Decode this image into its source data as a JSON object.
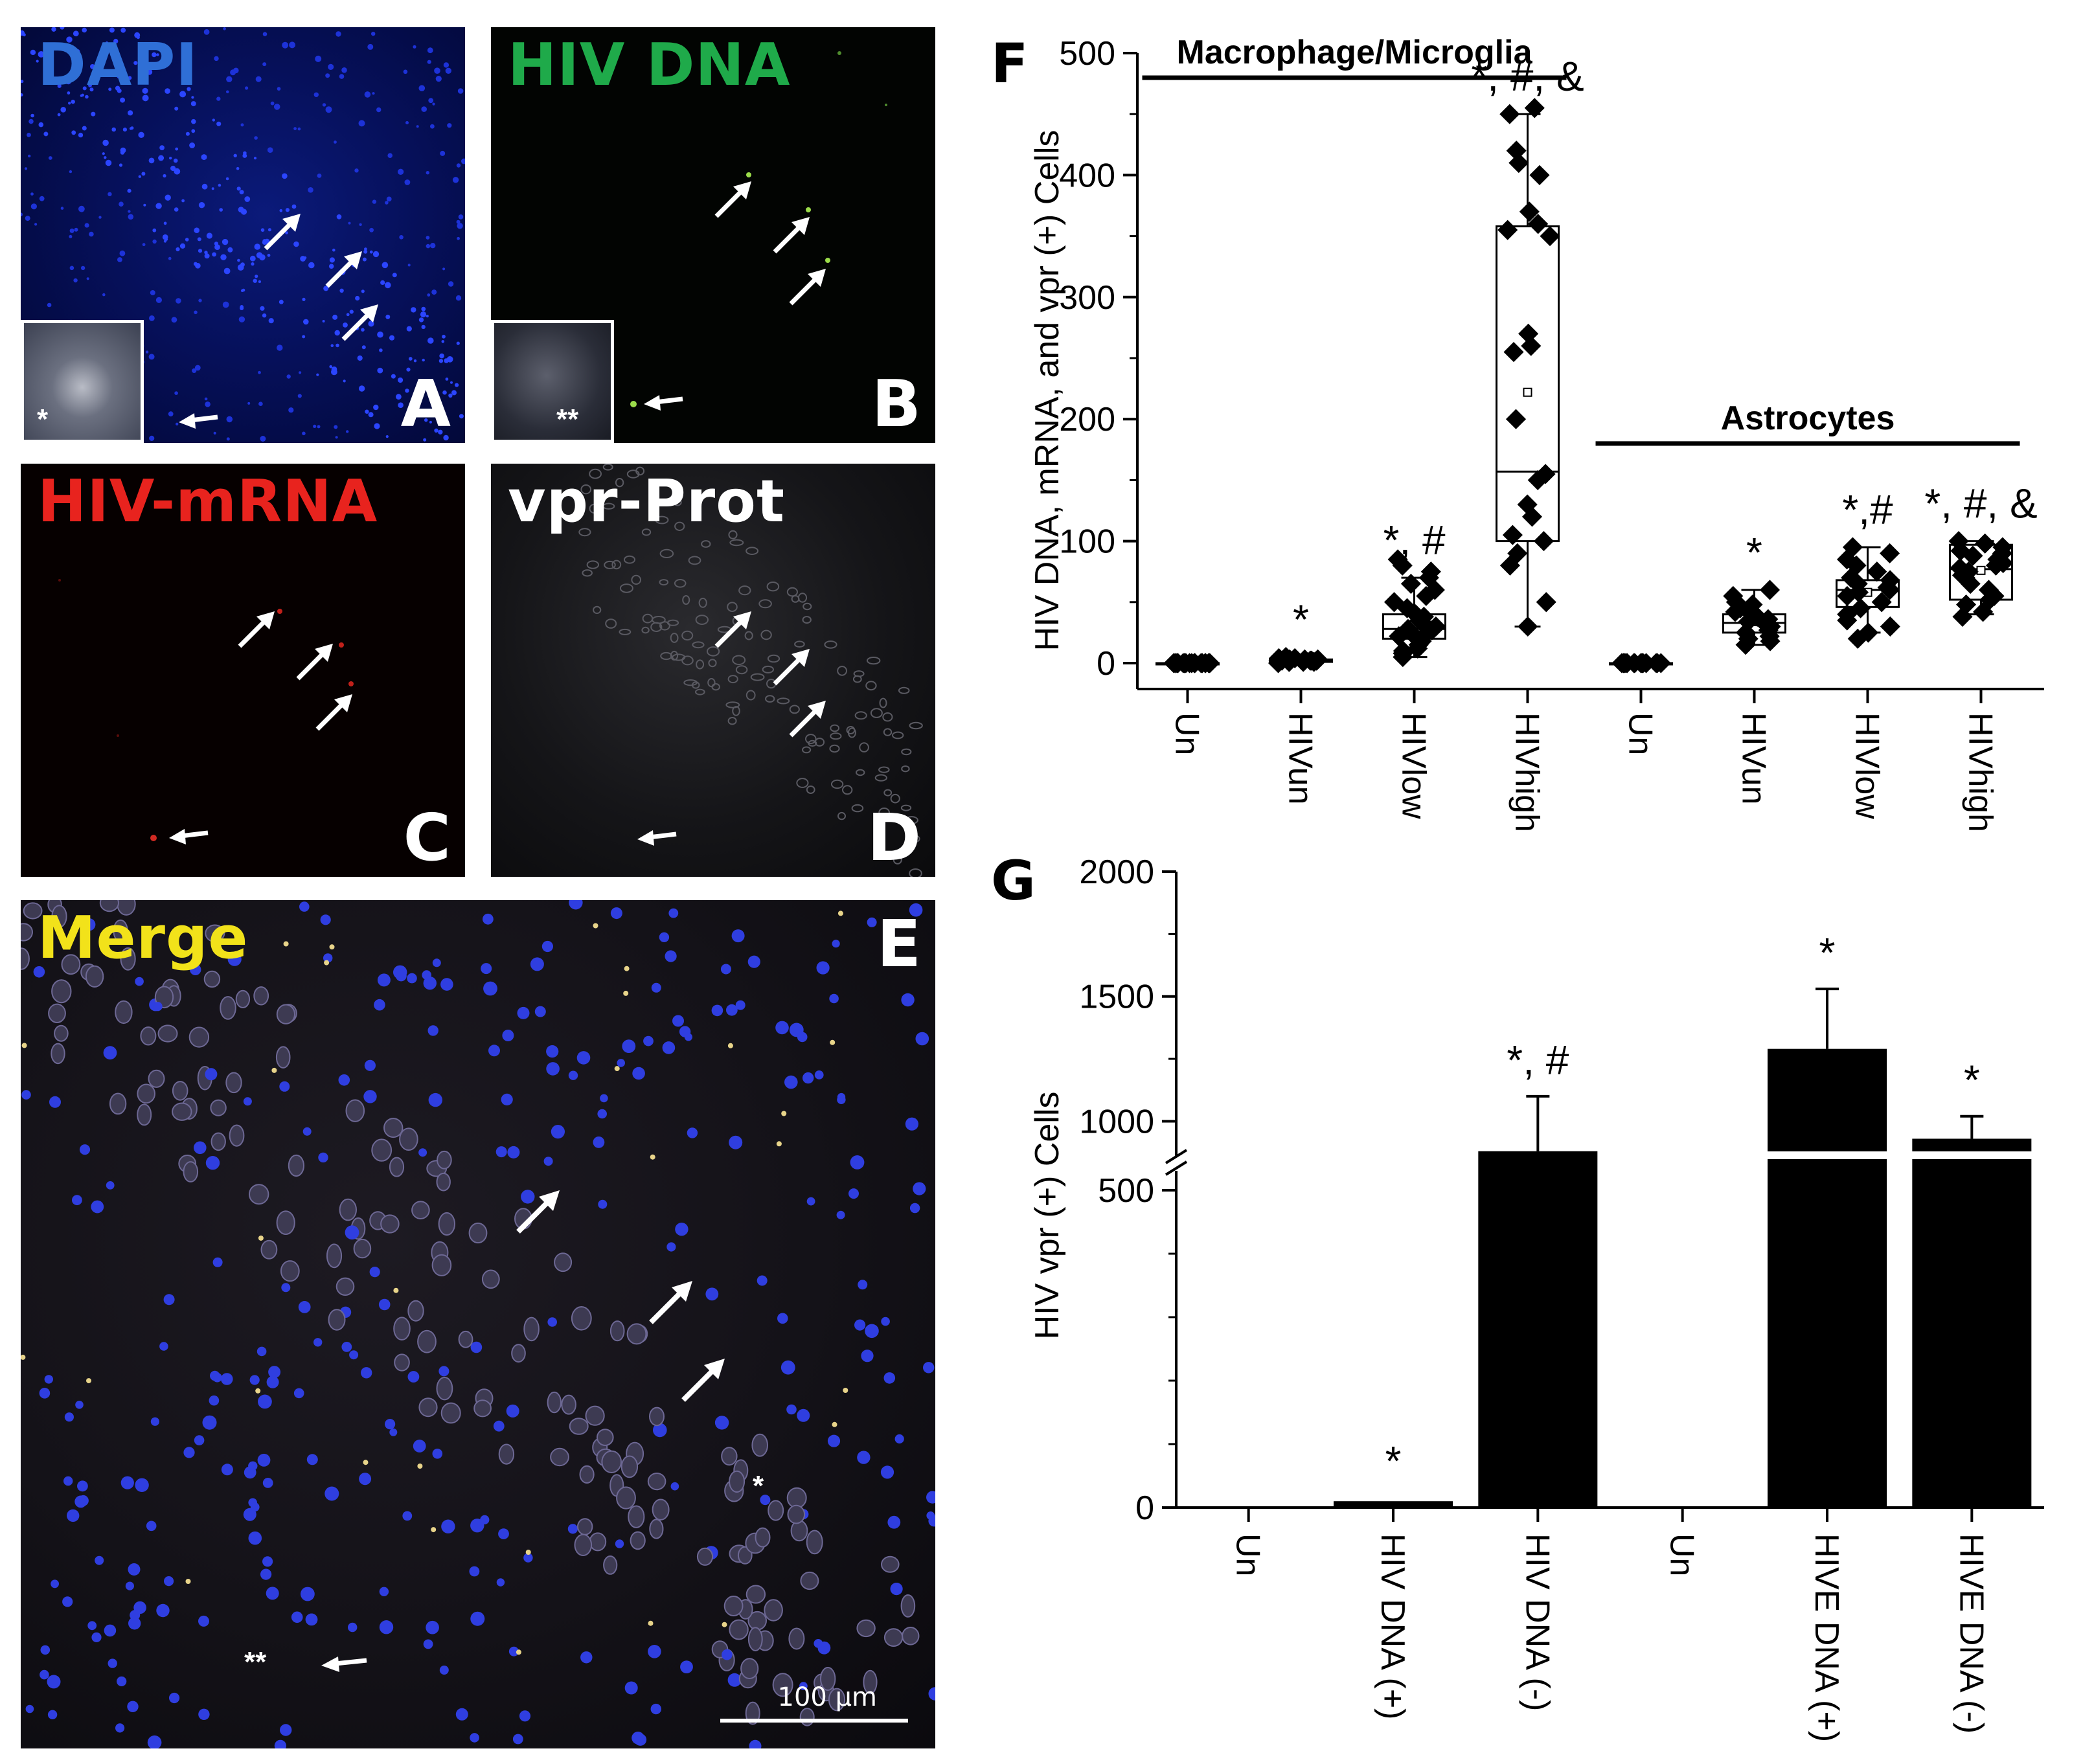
{
  "micrographs": [
    {
      "id": "A",
      "title": "DAPI",
      "title_color": "#2f6fd6",
      "letter": "A"
    },
    {
      "id": "B",
      "title": "HIV DNA",
      "title_color": "#1faa4a",
      "letter": "B"
    },
    {
      "id": "C",
      "title": "HIV-mRNA",
      "title_color": "#e8231e",
      "letter": "C"
    },
    {
      "id": "D",
      "title": "vpr-Prot",
      "title_color": "#ffffff",
      "letter": "D"
    },
    {
      "id": "E",
      "title": "Merge",
      "title_color": "#f2e21a",
      "letter": "E"
    }
  ],
  "insets": {
    "A": "*",
    "B": "**"
  },
  "merge_marks": {
    "single": "*",
    "double": "**"
  },
  "scale_bar": {
    "label": "100 µm"
  },
  "chart_data": [
    {
      "id": "F",
      "type": "box",
      "ylabel": "HIV DNA, mRNA, and vpr (+) Cells",
      "ylim": [
        0,
        500
      ],
      "yticks": [
        0,
        100,
        200,
        300,
        400,
        500
      ],
      "categories": [
        "Un",
        "HIVun",
        "HIVlow",
        "HIVhigh",
        "Un",
        "HIVun",
        "HIVlow",
        "HIVhigh"
      ],
      "groups": [
        {
          "label": "Macrophage/Microglia",
          "from": 0,
          "to": 3
        },
        {
          "label": "Astrocytes",
          "from": 4,
          "to": 7
        }
      ],
      "boxes": [
        {
          "q1": 0,
          "median": 0,
          "q3": 0,
          "whisker_low": 0,
          "whisker_high": 0,
          "mean": 0,
          "annotation": ""
        },
        {
          "q1": 1,
          "median": 2,
          "q3": 3,
          "whisker_low": 0,
          "whisker_high": 5,
          "mean": 2,
          "annotation": "*"
        },
        {
          "q1": 20,
          "median": 28,
          "q3": 40,
          "whisker_low": 5,
          "whisker_high": 70,
          "mean": 32,
          "annotation": "*, #"
        },
        {
          "q1": 100,
          "median": 157,
          "q3": 358,
          "whisker_low": 30,
          "whisker_high": 450,
          "mean": 222,
          "annotation": "*, #, &"
        },
        {
          "q1": 0,
          "median": 0,
          "q3": 0,
          "whisker_low": 0,
          "whisker_high": 0,
          "mean": 0,
          "annotation": ""
        },
        {
          "q1": 25,
          "median": 33,
          "q3": 40,
          "whisker_low": 15,
          "whisker_high": 60,
          "mean": 34,
          "annotation": "*"
        },
        {
          "q1": 46,
          "median": 60,
          "q3": 68,
          "whisker_low": 25,
          "whisker_high": 95,
          "mean": 58,
          "annotation": "*,#"
        },
        {
          "q1": 52,
          "median": 77,
          "q3": 97,
          "whisker_low": 40,
          "whisker_high": 100,
          "mean": 76,
          "annotation": "*, #, &"
        }
      ],
      "points": [
        [
          0,
          0,
          0,
          0,
          0,
          0,
          0,
          0,
          0,
          0,
          0,
          0,
          0,
          0,
          0,
          0,
          0,
          0,
          0,
          0
        ],
        [
          0,
          1,
          1,
          2,
          2,
          2,
          3,
          3,
          4,
          4,
          5,
          1,
          2,
          3,
          2,
          1
        ],
        [
          5,
          8,
          10,
          12,
          15,
          18,
          20,
          22,
          25,
          27,
          28,
          30,
          32,
          35,
          38,
          40,
          45,
          50,
          55,
          60,
          65,
          70,
          75,
          80,
          85
        ],
        [
          30,
          50,
          80,
          90,
          100,
          105,
          120,
          130,
          150,
          155,
          200,
          255,
          260,
          270,
          350,
          355,
          360,
          370,
          400,
          410,
          420,
          450,
          455
        ],
        [
          0,
          0,
          0,
          0,
          0,
          0,
          0,
          0,
          0,
          0,
          0,
          0,
          0,
          0,
          0
        ],
        [
          15,
          18,
          20,
          22,
          25,
          27,
          30,
          32,
          34,
          36,
          38,
          40,
          42,
          45,
          48,
          50,
          55,
          60
        ],
        [
          20,
          25,
          30,
          35,
          40,
          45,
          50,
          55,
          58,
          60,
          62,
          65,
          68,
          70,
          75,
          80,
          85,
          90,
          95
        ],
        [
          38,
          42,
          48,
          52,
          55,
          60,
          65,
          70,
          72,
          75,
          78,
          80,
          82,
          85,
          88,
          90,
          92,
          95,
          98,
          100
        ]
      ]
    },
    {
      "id": "G",
      "type": "bar",
      "ylabel": "HIV vpr  (+) Cells",
      "yticks": [
        0,
        500,
        1000,
        1500,
        2000
      ],
      "axis_break": [
        500,
        900
      ],
      "categories": [
        "Un",
        "HIV DNA (+)",
        "HIV DNA (-)",
        "Un",
        "HIVE DNA (+)",
        "HIVE DNA (-)"
      ],
      "values": [
        0,
        10,
        880,
        0,
        1290,
        930
      ],
      "errors": [
        0,
        0,
        220,
        0,
        240,
        90
      ],
      "annotations": [
        "",
        "*",
        "*, #",
        "",
        "*",
        "*"
      ]
    }
  ]
}
